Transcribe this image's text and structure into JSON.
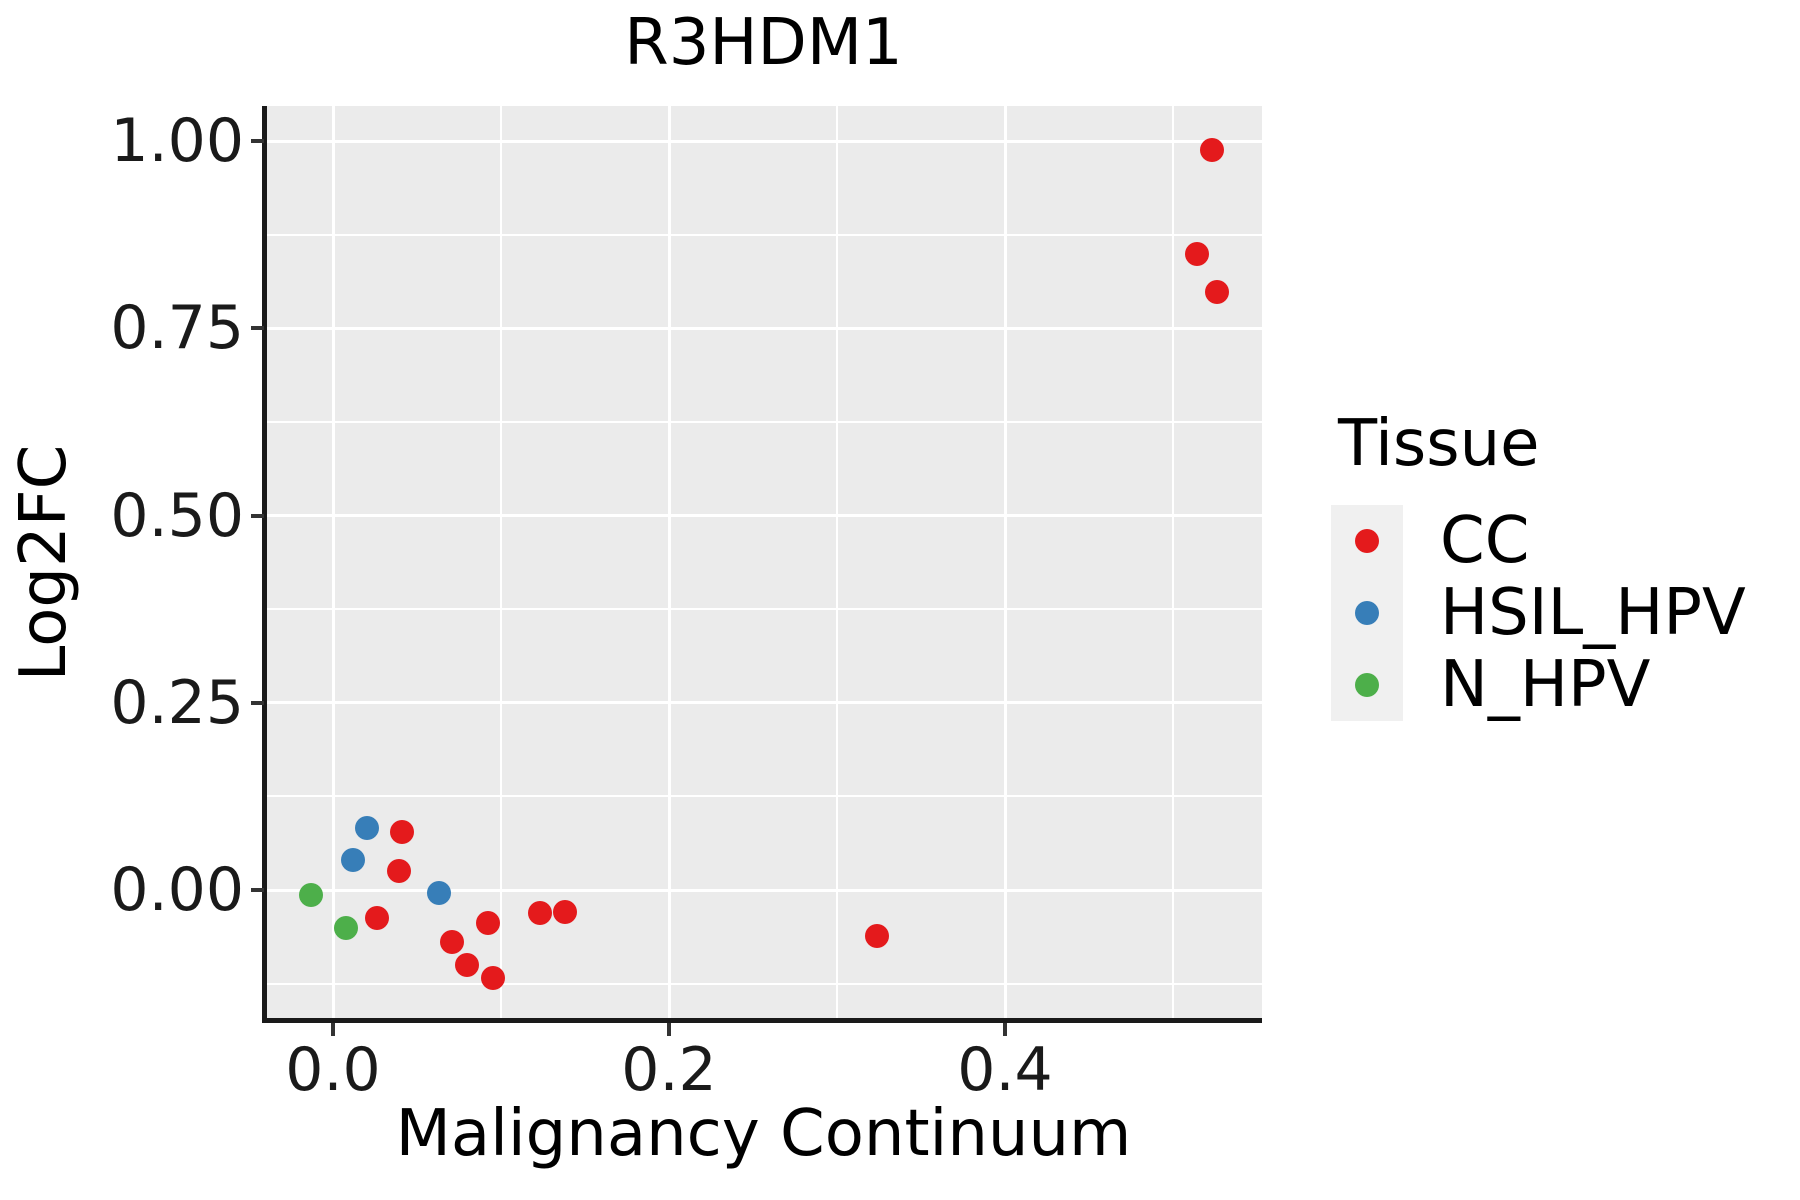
{
  "title": "R3HDM1",
  "axes": {
    "x": {
      "label": "Malignancy Continuum",
      "tick_labels": [
        "0.0",
        "0.2",
        "0.4"
      ],
      "tick_values": [
        0,
        0.2,
        0.4
      ],
      "minor_tick_values": [
        0.1,
        0.3,
        0.5
      ]
    },
    "y": {
      "label": "Log2FC",
      "tick_labels": [
        "0.00",
        "0.25",
        "0.50",
        "0.75",
        "1.00"
      ],
      "tick_values": [
        0,
        0.25,
        0.5,
        0.75,
        1.0
      ],
      "minor_tick_values": [
        -0.125,
        0.125,
        0.375,
        0.625,
        0.875
      ]
    }
  },
  "legend": {
    "title": "Tissue",
    "items": [
      {
        "label": "CC",
        "color": "#E41A1C"
      },
      {
        "label": "HSIL_HPV",
        "color": "#377EB8"
      },
      {
        "label": "N_HPV",
        "color": "#4DAF4A"
      }
    ]
  },
  "colors": {
    "page_bg": "#FFFFFF",
    "panel_bg": "#EBEBEB",
    "grid": "#FFFFFF",
    "axis_line": "#1A1A1A",
    "tick_mark": "#333333",
    "legend_key_bg": "#F0F0F0",
    "cc_red": "#E41A1C",
    "hsil_blue": "#377EB8",
    "nhpv_green": "#4DAF4A"
  },
  "chart_data": {
    "type": "scatter",
    "title": "R3HDM1",
    "xlabel": "Malignancy Continuum",
    "ylabel": "Log2FC",
    "xlim": [
      -0.04,
      0.554
    ],
    "ylim": [
      -0.174,
      1.047
    ],
    "x_ticks": [
      0,
      0.2,
      0.4
    ],
    "y_ticks": [
      0,
      0.25,
      0.5,
      0.75,
      1.0
    ],
    "grid": "white major+minor gridlines on gray panel",
    "legend_title": "Tissue",
    "legend_position": "right",
    "series": [
      {
        "name": "CC",
        "color": "#E41A1C",
        "points": [
          [
            0.523,
            0.988
          ],
          [
            0.514,
            0.849
          ],
          [
            0.526,
            0.798
          ],
          [
            0.041,
            0.077
          ],
          [
            0.039,
            0.025
          ],
          [
            0.026,
            -0.037
          ],
          [
            0.071,
            -0.07
          ],
          [
            0.08,
            -0.1
          ],
          [
            0.095,
            -0.118
          ],
          [
            0.092,
            -0.044
          ],
          [
            0.123,
            -0.031
          ],
          [
            0.138,
            -0.03
          ],
          [
            0.324,
            -0.061
          ]
        ]
      },
      {
        "name": "HSIL_HPV",
        "color": "#377EB8",
        "points": [
          [
            0.02,
            0.083
          ],
          [
            0.012,
            0.04
          ],
          [
            0.063,
            -0.004
          ]
        ]
      },
      {
        "name": "N_HPV",
        "color": "#4DAF4A",
        "points": [
          [
            -0.013,
            -0.007
          ],
          [
            0.008,
            -0.051
          ]
        ]
      }
    ]
  }
}
